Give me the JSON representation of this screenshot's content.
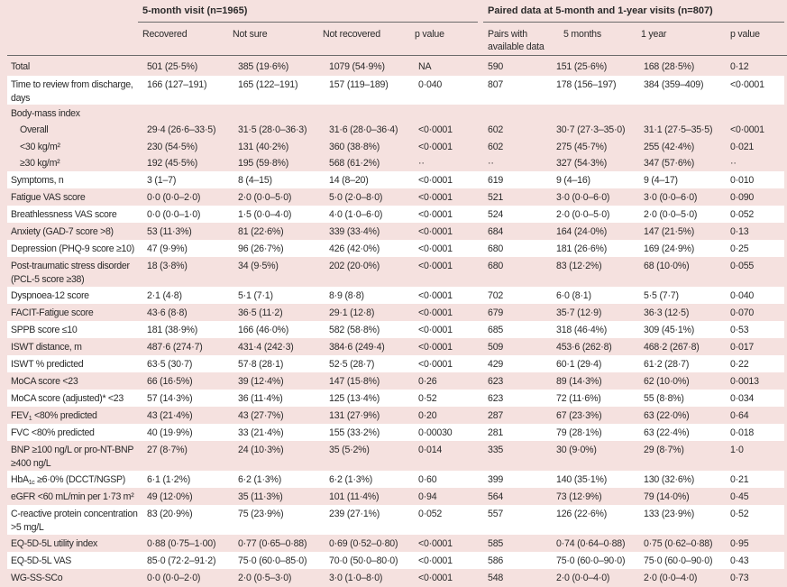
{
  "header": {
    "group1": "5-month visit (n=1965)",
    "group2": "Paired data at 5-month and 1-year visits (n=807)",
    "columns": [
      "Recovered",
      "Not sure",
      "Not recovered",
      "p value",
      "Pairs with available data",
      "5 months",
      "1 year",
      "p value"
    ]
  },
  "colors": {
    "background": "#f5e1df",
    "stripe": "#ffffff",
    "rule": "#6b6b6b"
  },
  "rows": [
    {
      "label": "Total",
      "values": [
        "501 (25·5%)",
        "385 (19·6%)",
        "1079 (54·9%)",
        "NA",
        "590",
        "151 (25·6%)",
        "168 (28·5%)",
        "0·12"
      ]
    },
    {
      "label": "Time to review from discharge, days",
      "values": [
        "166 (127–191)",
        "165 (122–191)",
        "157 (119–189)",
        "0·040",
        "807",
        "178 (156–197)",
        "384 (359–409)",
        "<0·0001"
      ]
    },
    {
      "label": "Body-mass index",
      "values": [
        "",
        "",
        "",
        "",
        "",
        "",
        "",
        ""
      ]
    },
    {
      "label": "Overall",
      "indent": true,
      "cont": true,
      "values": [
        "29·4 (26·6–33·5)",
        "31·5 (28·0–36·3)",
        "31·6 (28·0–36·4)",
        "<0·0001",
        "602",
        "30·7 (27·3–35·0)",
        "31·1 (27·5–35·5)",
        "<0·0001"
      ]
    },
    {
      "label": "<30 kg/m²",
      "indent": true,
      "cont": true,
      "values": [
        "230 (54·5%)",
        "131 (40·2%)",
        "360 (38·8%)",
        "<0·0001",
        "602",
        "275 (45·7%)",
        "255 (42·4%)",
        "0·021"
      ]
    },
    {
      "label": "≥30 kg/m²",
      "indent": true,
      "cont": true,
      "values": [
        "192 (45·5%)",
        "195 (59·8%)",
        "568 (61·2%)",
        "··",
        "··",
        "327 (54·3%)",
        "347 (57·6%)",
        "··"
      ]
    },
    {
      "label": "Symptoms, n",
      "values": [
        "3 (1–7)",
        "8 (4–15)",
        "14 (8–20)",
        "<0·0001",
        "619",
        "9 (4–16)",
        "9 (4–17)",
        "0·010"
      ]
    },
    {
      "label": "Fatigue VAS score",
      "values": [
        "0·0 (0·0–2·0)",
        "2·0 (0·0–5·0)",
        "5·0 (2·0–8·0)",
        "<0·0001",
        "521",
        "3·0 (0·0–6·0)",
        "3·0 (0·0–6·0)",
        "0·090"
      ]
    },
    {
      "label": "Breathlessness VAS score",
      "values": [
        "0·0 (0·0–1·0)",
        "1·5 (0·0–4·0)",
        "4·0 (1·0–6·0)",
        "<0·0001",
        "524",
        "2·0 (0·0–5·0)",
        "2·0 (0·0–5·0)",
        "0·052"
      ]
    },
    {
      "label": "Anxiety (GAD-7 score >8)",
      "values": [
        "53 (11·3%)",
        "81 (22·6%)",
        "339 (33·4%)",
        "<0·0001",
        "684",
        "164 (24·0%)",
        "147 (21·5%)",
        "0·13"
      ]
    },
    {
      "label": "Depression (PHQ-9 score ≥10)",
      "values": [
        "47 (9·9%)",
        "96 (26·7%)",
        "426 (42·0%)",
        "<0·0001",
        "680",
        "181 (26·6%)",
        "169 (24·9%)",
        "0·25"
      ]
    },
    {
      "label": "Post-traumatic stress disorder (PCL-5 score ≥38)",
      "values": [
        "18 (3·8%)",
        "34 (9·5%)",
        "202 (20·0%)",
        "<0·0001",
        "680",
        "83 (12·2%)",
        "68 (10·0%)",
        "0·055"
      ]
    },
    {
      "label": "Dyspnoea-12 score",
      "values": [
        "2·1 (4·8)",
        "5·1 (7·1)",
        "8·9 (8·8)",
        "<0·0001",
        "702",
        "6·0 (8·1)",
        "5·5 (7·7)",
        "0·040"
      ]
    },
    {
      "label": "FACIT-Fatigue score",
      "values": [
        "43·6 (8·8)",
        "36·5 (11·2)",
        "29·1 (12·8)",
        "<0·0001",
        "679",
        "35·7 (12·9)",
        "36·3 (12·5)",
        "0·070"
      ]
    },
    {
      "label": "SPPB score ≤10",
      "values": [
        "181 (38·9%)",
        "166 (46·0%)",
        "582 (58·8%)",
        "<0·0001",
        "685",
        "318 (46·4%)",
        "309 (45·1%)",
        "0·53"
      ]
    },
    {
      "label": "ISWT distance, m",
      "values": [
        "487·6 (274·7)",
        "431·4 (242·3)",
        "384·6 (249·4)",
        "<0·0001",
        "509",
        "453·6 (262·8)",
        "468·2 (267·8)",
        "0·017"
      ]
    },
    {
      "label": "ISWT % predicted",
      "values": [
        "63·5 (30·7)",
        "57·8 (28·1)",
        "52·5 (28·7)",
        "<0·0001",
        "429",
        "60·1 (29·4)",
        "61·2 (28·7)",
        "0·22"
      ]
    },
    {
      "label": "MoCA score <23",
      "values": [
        "66 (16·5%)",
        "39 (12·4%)",
        "147 (15·8%)",
        "0·26",
        "623",
        "89 (14·3%)",
        "62 (10·0%)",
        "0·0013"
      ]
    },
    {
      "label": "MoCA score (adjusted)* <23",
      "values": [
        "57 (14·3%)",
        "36 (11·4%)",
        "125 (13·4%)",
        "0·52",
        "623",
        "72 (11·6%)",
        "55 (8·8%)",
        "0·034"
      ]
    },
    {
      "label": "FEV",
      "sub": "1",
      "rest": " <80% predicted",
      "values": [
        "43 (21·4%)",
        "43 (27·7%)",
        "131 (27·9%)",
        "0·20",
        "287",
        "67 (23·3%)",
        "63 (22·0%)",
        "0·64"
      ]
    },
    {
      "label": "FVC <80% predicted",
      "values": [
        "40 (19·9%)",
        "33 (21·4%)",
        "155 (33·2%)",
        "0·00030",
        "281",
        "79 (28·1%)",
        "63 (22·4%)",
        "0·018"
      ]
    },
    {
      "label": "BNP ≥100 ng/L or pro-NT-BNP ≥400 ng/L",
      "values": [
        "27 (8·7%)",
        "24 (10·3%)",
        "35 (5·2%)",
        "0·014",
        "335",
        "30 (9·0%)",
        "29 (8·7%)",
        "1·0"
      ]
    },
    {
      "label": "HbA",
      "sub": "1c",
      "rest": " ≥6·0% (DCCT/NGSP)",
      "values": [
        "6·1 (1·2%)",
        "6·2 (1·3%)",
        "6·2 (1·3%)",
        "0·60",
        "399",
        "140 (35·1%)",
        "130 (32·6%)",
        "0·21"
      ]
    },
    {
      "label": "eGFR <60 mL/min per 1·73 m²",
      "values": [
        "49 (12·0%)",
        "35 (11·3%)",
        "101 (11·4%)",
        "0·94",
        "564",
        "73 (12·9%)",
        "79 (14·0%)",
        "0·45"
      ]
    },
    {
      "label": "C-reactive protein concentration >5 mg/L",
      "values": [
        "83 (20·9%)",
        "75 (23·9%)",
        "239 (27·1%)",
        "0·052",
        "557",
        "126 (22·6%)",
        "133 (23·9%)",
        "0·52"
      ]
    },
    {
      "label": "EQ-5D-5L utility index",
      "values": [
        "0·88 (0·75–1·00)",
        "0·77 (0·65–0·88)",
        "0·69 (0·52–0·80)",
        "<0·0001",
        "585",
        "0·74 (0·64–0·88)",
        "0·75 (0·62–0·88)",
        "0·95"
      ]
    },
    {
      "label": "EQ-5D-5L VAS",
      "values": [
        "85·0 (72·2–91·2)",
        "75·0 (60·0–85·0)",
        "70·0 (50·0–80·0)",
        "<0·0001",
        "586",
        "75·0 (60·0–90·0)",
        "75·0 (60·0–90·0)",
        "0·43"
      ]
    },
    {
      "label": "WG-SS-SCo",
      "values": [
        "0·0 (0·0–2·0)",
        "2·0 (0·5–3·0)",
        "3·0 (1·0–8·0)",
        "<0·0001",
        "548",
        "2·0 (0·0–4·0)",
        "2·0 (0·0–4·0)",
        "0·73"
      ]
    }
  ]
}
